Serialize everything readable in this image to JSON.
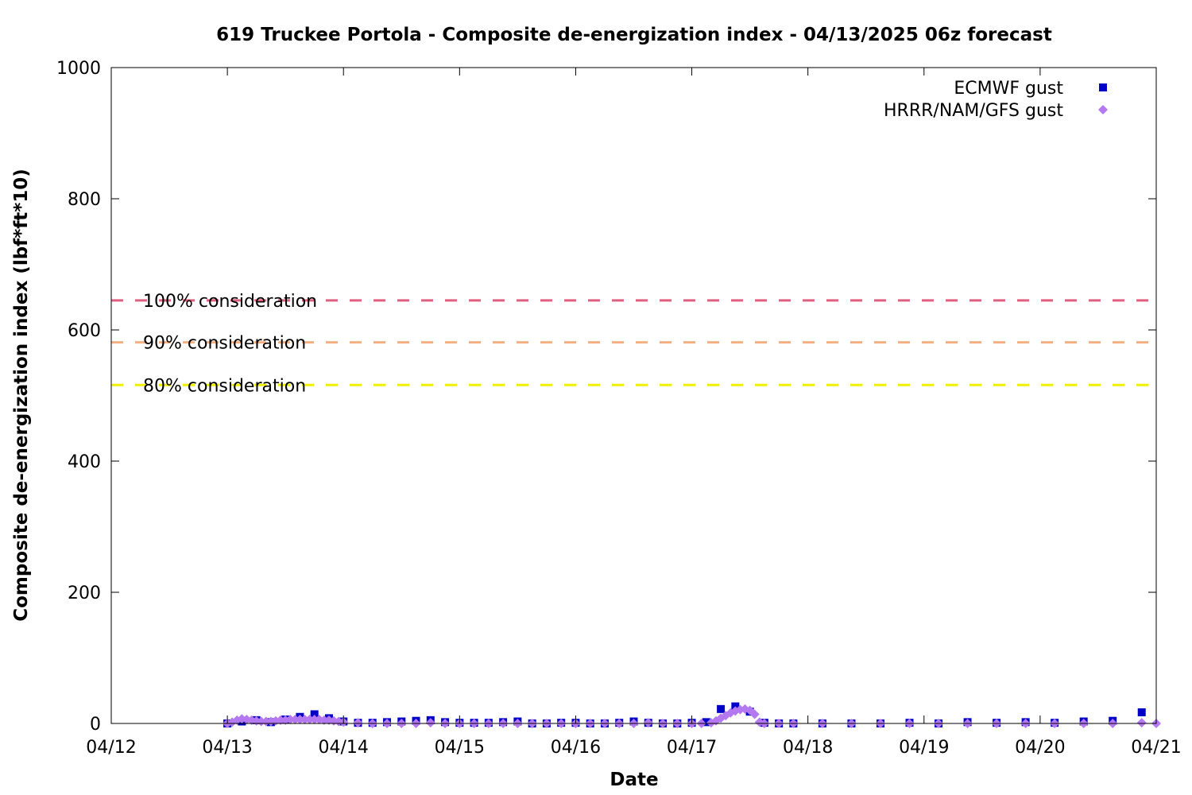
{
  "chart_data": {
    "type": "scatter",
    "title": "619 Truckee Portola - Composite de-energization index - 04/13/2025 06z forecast",
    "xlabel": "Date",
    "ylabel": "Composite de-energization index (lbf*ft*10)",
    "x_unit": "days",
    "x_ticks": [
      "04/12",
      "04/13",
      "04/14",
      "04/15",
      "04/16",
      "04/17",
      "04/18",
      "04/19",
      "04/20",
      "04/21"
    ],
    "xlim": [
      "04/12",
      "04/21"
    ],
    "ylim": [
      0,
      1000
    ],
    "y_ticks": [
      0,
      200,
      400,
      600,
      800,
      1000
    ],
    "grid": false,
    "legend_position": "top-right",
    "reference_lines": [
      {
        "label": "100% consideration",
        "value": 645,
        "color": "#e06080"
      },
      {
        "label": "90% consideration",
        "value": 581,
        "color": "#f4b080"
      },
      {
        "label": "80% consideration",
        "value": 516,
        "color": "#f0f000"
      }
    ],
    "series": [
      {
        "name": "ECMWF gust",
        "color": "#0000c8",
        "marker": "square",
        "points": [
          [
            "04/13 00z",
            0
          ],
          [
            "04/13 03z",
            3
          ],
          [
            "04/13 06z",
            5
          ],
          [
            "04/13 09z",
            2
          ],
          [
            "04/13 12z",
            6
          ],
          [
            "04/13 15z",
            10
          ],
          [
            "04/13 18z",
            14
          ],
          [
            "04/13 21z",
            8
          ],
          [
            "04/14 00z",
            3
          ],
          [
            "04/14 03z",
            1
          ],
          [
            "04/14 06z",
            1
          ],
          [
            "04/14 09z",
            2
          ],
          [
            "04/14 12z",
            3
          ],
          [
            "04/14 15z",
            4
          ],
          [
            "04/14 18z",
            5
          ],
          [
            "04/14 21z",
            2
          ],
          [
            "04/15 00z",
            1
          ],
          [
            "04/15 03z",
            1
          ],
          [
            "04/15 06z",
            1
          ],
          [
            "04/15 09z",
            2
          ],
          [
            "04/15 12z",
            3
          ],
          [
            "04/15 15z",
            0
          ],
          [
            "04/15 18z",
            0
          ],
          [
            "04/15 21z",
            1
          ],
          [
            "04/16 00z",
            1
          ],
          [
            "04/16 03z",
            0
          ],
          [
            "04/16 06z",
            0
          ],
          [
            "04/16 09z",
            1
          ],
          [
            "04/16 12z",
            3
          ],
          [
            "04/16 15z",
            1
          ],
          [
            "04/16 18z",
            0
          ],
          [
            "04/16 21z",
            0
          ],
          [
            "04/17 00z",
            1
          ],
          [
            "04/17 03z",
            2
          ],
          [
            "04/17 06z",
            22
          ],
          [
            "04/17 09z",
            26
          ],
          [
            "04/17 12z",
            18
          ],
          [
            "04/17 15z",
            1
          ],
          [
            "04/17 18z",
            0
          ],
          [
            "04/17 21z",
            0
          ],
          [
            "04/18 03z",
            0
          ],
          [
            "04/18 09z",
            0
          ],
          [
            "04/18 15z",
            0
          ],
          [
            "04/18 21z",
            1
          ],
          [
            "04/19 03z",
            0
          ],
          [
            "04/19 09z",
            2
          ],
          [
            "04/19 15z",
            1
          ],
          [
            "04/19 21z",
            2
          ],
          [
            "04/20 03z",
            1
          ],
          [
            "04/20 09z",
            3
          ],
          [
            "04/20 15z",
            4
          ],
          [
            "04/20 21z",
            17
          ]
        ]
      },
      {
        "name": "HRRR/NAM/GFS gust",
        "color": "#b478f0",
        "marker": "diamond",
        "points": [
          [
            "04/13 00z",
            0
          ],
          [
            "04/13 01z",
            2
          ],
          [
            "04/13 02z",
            5
          ],
          [
            "04/13 03z",
            7
          ],
          [
            "04/13 04z",
            6
          ],
          [
            "04/13 05z",
            5
          ],
          [
            "04/13 06z",
            4
          ],
          [
            "04/13 07z",
            3
          ],
          [
            "04/13 08z",
            3
          ],
          [
            "04/13 09z",
            3
          ],
          [
            "04/13 10z",
            4
          ],
          [
            "04/13 11z",
            5
          ],
          [
            "04/13 12z",
            5
          ],
          [
            "04/13 13z",
            6
          ],
          [
            "04/13 14z",
            6
          ],
          [
            "04/13 15z",
            6
          ],
          [
            "04/13 16z",
            6
          ],
          [
            "04/13 17z",
            6
          ],
          [
            "04/13 18z",
            6
          ],
          [
            "04/13 19z",
            6
          ],
          [
            "04/13 20z",
            5
          ],
          [
            "04/13 21z",
            5
          ],
          [
            "04/13 22z",
            4
          ],
          [
            "04/13 23z",
            3
          ],
          [
            "04/14 00z",
            2
          ],
          [
            "04/14 03z",
            1
          ],
          [
            "04/14 06z",
            0
          ],
          [
            "04/14 09z",
            0
          ],
          [
            "04/14 12z",
            0
          ],
          [
            "04/14 15z",
            0
          ],
          [
            "04/14 18z",
            1
          ],
          [
            "04/14 21z",
            0
          ],
          [
            "04/15 00z",
            0
          ],
          [
            "04/15 03z",
            0
          ],
          [
            "04/15 06z",
            0
          ],
          [
            "04/15 09z",
            0
          ],
          [
            "04/15 12z",
            0
          ],
          [
            "04/15 15z",
            0
          ],
          [
            "04/15 18z",
            0
          ],
          [
            "04/15 21z",
            0
          ],
          [
            "04/16 00z",
            0
          ],
          [
            "04/16 03z",
            0
          ],
          [
            "04/16 06z",
            0
          ],
          [
            "04/16 09z",
            0
          ],
          [
            "04/16 12z",
            0
          ],
          [
            "04/16 15z",
            1
          ],
          [
            "04/16 18z",
            0
          ],
          [
            "04/16 21z",
            0
          ],
          [
            "04/17 00z",
            0
          ],
          [
            "04/17 02z",
            0
          ],
          [
            "04/17 04z",
            1
          ],
          [
            "04/17 05z",
            4
          ],
          [
            "04/17 06z",
            8
          ],
          [
            "04/17 07z",
            12
          ],
          [
            "04/17 08z",
            16
          ],
          [
            "04/17 09z",
            19
          ],
          [
            "04/17 10z",
            21
          ],
          [
            "04/17 11z",
            22
          ],
          [
            "04/17 12z",
            20
          ],
          [
            "04/17 13z",
            14
          ],
          [
            "04/17 14z",
            2
          ],
          [
            "04/17 15z",
            0
          ],
          [
            "04/17 18z",
            0
          ],
          [
            "04/17 21z",
            0
          ],
          [
            "04/18 03z",
            0
          ],
          [
            "04/18 09z",
            0
          ],
          [
            "04/18 15z",
            0
          ],
          [
            "04/18 21z",
            0
          ],
          [
            "04/19 03z",
            0
          ],
          [
            "04/19 09z",
            0
          ],
          [
            "04/19 15z",
            0
          ],
          [
            "04/19 21z",
            0
          ],
          [
            "04/20 03z",
            0
          ],
          [
            "04/20 09z",
            0
          ],
          [
            "04/20 15z",
            0
          ],
          [
            "04/20 21z",
            1
          ],
          [
            "04/21 00z",
            0
          ]
        ]
      }
    ]
  }
}
